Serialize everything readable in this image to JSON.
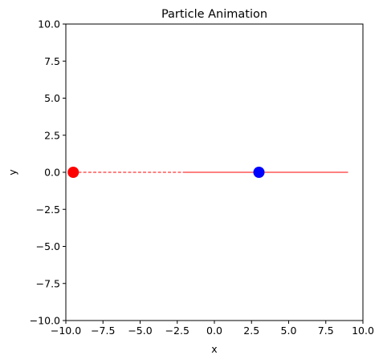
{
  "chart_data": {
    "type": "scatter",
    "title": "Particle Animation",
    "xlabel": "x",
    "ylabel": "y",
    "xlim": [
      -10,
      10
    ],
    "ylim": [
      -10,
      10
    ],
    "grid": false,
    "xticks": [
      -10.0,
      -7.5,
      -5.0,
      -2.5,
      0.0,
      2.5,
      5.0,
      7.5,
      10.0
    ],
    "yticks": [
      -10.0,
      -7.5,
      -5.0,
      -2.5,
      0.0,
      2.5,
      5.0,
      7.5,
      10.0
    ],
    "xtick_labels": [
      "−10.0",
      "−7.5",
      "−5.0",
      "−2.5",
      "0.0",
      "2.5",
      "5.0",
      "7.5",
      "10.0"
    ],
    "ytick_labels": [
      "−10.0",
      "−7.5",
      "−5.0",
      "−2.5",
      "0.0",
      "2.5",
      "5.0",
      "7.5",
      "10.0"
    ],
    "points": [
      {
        "id": "red-particle",
        "x": -9.5,
        "y": 0,
        "color": "#ff0000"
      },
      {
        "id": "blue-particle",
        "x": 3.0,
        "y": 0,
        "color": "#0000ff"
      }
    ],
    "trails": [
      {
        "id": "red-dashed-trail",
        "x": [
          -9.5,
          9.0
        ],
        "y": [
          0,
          0
        ],
        "color": "#ff0000",
        "style": "dashed"
      },
      {
        "id": "red-solid-trail",
        "x": [
          -2.0,
          9.0
        ],
        "y": [
          0,
          0
        ],
        "color": "#ff0000",
        "style": "solid"
      }
    ]
  }
}
